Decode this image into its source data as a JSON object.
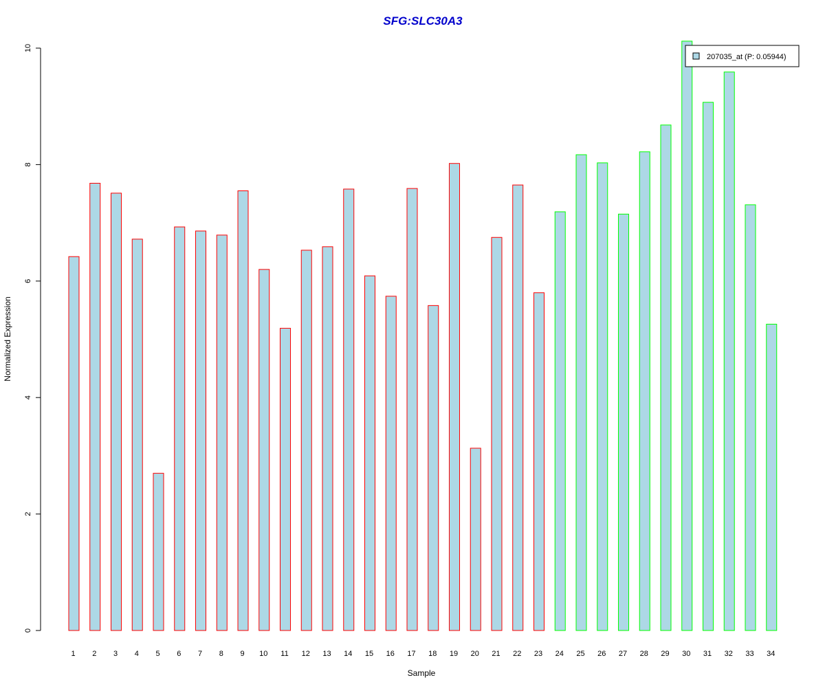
{
  "chart_data": {
    "type": "bar",
    "title": "SFG:SLC30A3",
    "xlabel": "Sample",
    "ylabel": "Normalized Expression",
    "ylim": [
      0,
      10
    ],
    "yticks": [
      0,
      2,
      4,
      6,
      8,
      10
    ],
    "categories": [
      "1",
      "2",
      "3",
      "4",
      "5",
      "6",
      "7",
      "8",
      "9",
      "10",
      "11",
      "12",
      "13",
      "14",
      "15",
      "16",
      "17",
      "18",
      "19",
      "20",
      "21",
      "22",
      "23",
      "24",
      "25",
      "26",
      "27",
      "28",
      "29",
      "30",
      "31",
      "32",
      "33",
      "34"
    ],
    "series": [
      {
        "name": "207035_at (P: 0.05944)",
        "values": [
          6.42,
          7.68,
          7.51,
          6.72,
          2.7,
          6.93,
          6.86,
          6.79,
          7.55,
          6.2,
          5.19,
          6.53,
          6.59,
          7.58,
          6.09,
          5.74,
          7.59,
          5.58,
          8.02,
          3.13,
          6.75,
          7.65,
          5.8,
          7.19,
          8.17,
          8.03,
          7.15,
          8.22,
          8.68,
          10.12,
          9.07,
          9.59,
          7.31,
          5.26
        ]
      }
    ],
    "groups": [
      1,
      1,
      1,
      1,
      1,
      1,
      1,
      1,
      1,
      1,
      1,
      1,
      1,
      1,
      1,
      1,
      1,
      1,
      1,
      1,
      1,
      1,
      1,
      2,
      2,
      2,
      2,
      2,
      2,
      2,
      2,
      2,
      2,
      2
    ],
    "legend": "top-right",
    "grid": false
  },
  "colors": {
    "title": "#0000CC",
    "bar_fill": "#ADD8E6",
    "group1_border": "#FF0000",
    "group2_border": "#00FF00",
    "axis": "#000000",
    "background": "#FFFFFF"
  }
}
